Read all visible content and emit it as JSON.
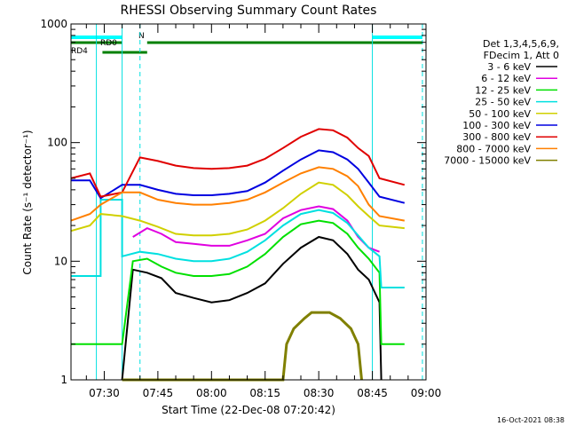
{
  "chart_data": {
    "type": "line",
    "title": "RHESSI Observing Summary Count Rates",
    "xlabel": "Start Time (22-Dec-08 07:20:42)",
    "ylabel": "Count Rate (s⁻¹ detector⁻¹)",
    "x_start": "07:20:42",
    "x_end": "09:00",
    "xlim_minutes": [
      440.7,
      540
    ],
    "ylim": [
      1,
      1000
    ],
    "yscale": "log",
    "x_ticks": [
      "07:30",
      "07:45",
      "08:00",
      "08:15",
      "08:30",
      "08:45",
      "09:00"
    ],
    "x_tick_minutes": [
      450,
      465,
      480,
      495,
      510,
      525,
      540
    ],
    "y_ticks": [
      "1",
      "10",
      "100",
      "1000"
    ],
    "y_tick_values": [
      1,
      10,
      100,
      1000
    ],
    "legend_header": [
      "Det 1,3,4,5,6,9,",
      "FDecim 1, Att 0"
    ],
    "series": [
      {
        "name": "3 - 6 keV",
        "color": "#000000",
        "points": [
          [
            455,
            1.0
          ],
          [
            458,
            8.5
          ],
          [
            462,
            8.0
          ],
          [
            466,
            7.2
          ],
          [
            470,
            5.4
          ],
          [
            475,
            4.9
          ],
          [
            480,
            4.5
          ],
          [
            485,
            4.7
          ],
          [
            490,
            5.4
          ],
          [
            495,
            6.5
          ],
          [
            500,
            9.5
          ],
          [
            505,
            13.0
          ],
          [
            510,
            16.0
          ],
          [
            514,
            15.0
          ],
          [
            518,
            11.5
          ],
          [
            521,
            8.5
          ],
          [
            524,
            7.0
          ],
          [
            527,
            4.5
          ],
          [
            527.5,
            1.0
          ]
        ]
      },
      {
        "name": "6 - 12 keV",
        "color": "#e000e0",
        "points": [
          [
            458,
            16.0
          ],
          [
            462,
            19.0
          ],
          [
            466,
            17.0
          ],
          [
            470,
            14.5
          ],
          [
            475,
            14.0
          ],
          [
            480,
            13.5
          ],
          [
            485,
            13.5
          ],
          [
            490,
            15.0
          ],
          [
            495,
            17.0
          ],
          [
            500,
            23.0
          ],
          [
            505,
            27.0
          ],
          [
            510,
            29.0
          ],
          [
            514,
            27.5
          ],
          [
            518,
            22.0
          ],
          [
            521,
            16.0
          ],
          [
            524,
            13.0
          ],
          [
            527,
            12.0
          ]
        ]
      },
      {
        "name": "12 - 25 keV",
        "color": "#00e000",
        "points": [
          [
            440.7,
            2.0
          ],
          [
            455,
            2.0
          ],
          [
            458,
            10.0
          ],
          [
            462,
            10.5
          ],
          [
            466,
            9.0
          ],
          [
            470,
            8.0
          ],
          [
            475,
            7.5
          ],
          [
            480,
            7.5
          ],
          [
            485,
            7.8
          ],
          [
            490,
            9.0
          ],
          [
            495,
            11.5
          ],
          [
            500,
            16.0
          ],
          [
            505,
            20.5
          ],
          [
            510,
            22.0
          ],
          [
            514,
            21.0
          ],
          [
            518,
            17.0
          ],
          [
            521,
            13.0
          ],
          [
            524,
            10.5
          ],
          [
            527,
            8.0
          ],
          [
            527.5,
            2.0
          ],
          [
            534,
            2.0
          ]
        ]
      },
      {
        "name": "25 - 50 keV",
        "color": "#00e0e0",
        "points": [
          [
            440.7,
            7.5
          ],
          [
            449,
            7.5
          ],
          [
            449,
            33.0
          ],
          [
            455,
            33.0
          ],
          [
            455,
            11.0
          ],
          [
            460,
            12.0
          ],
          [
            465,
            11.5
          ],
          [
            470,
            10.5
          ],
          [
            475,
            10.0
          ],
          [
            480,
            10.0
          ],
          [
            485,
            10.5
          ],
          [
            490,
            12.0
          ],
          [
            495,
            15.0
          ],
          [
            500,
            20.0
          ],
          [
            505,
            25.0
          ],
          [
            510,
            27.0
          ],
          [
            514,
            25.5
          ],
          [
            518,
            21.0
          ],
          [
            521,
            16.5
          ],
          [
            524,
            13.0
          ],
          [
            527,
            11.0
          ],
          [
            527.5,
            6.0
          ],
          [
            534,
            6.0
          ]
        ]
      },
      {
        "name": "50 - 100 keV",
        "color": "#d0d000",
        "points": [
          [
            440.7,
            18.0
          ],
          [
            446,
            20.0
          ],
          [
            449,
            25.0
          ],
          [
            455,
            24.0
          ],
          [
            460,
            22.0
          ],
          [
            465,
            19.5
          ],
          [
            470,
            17.0
          ],
          [
            475,
            16.5
          ],
          [
            480,
            16.5
          ],
          [
            485,
            17.0
          ],
          [
            490,
            18.5
          ],
          [
            495,
            22.0
          ],
          [
            500,
            28.0
          ],
          [
            505,
            37.0
          ],
          [
            510,
            46.0
          ],
          [
            514,
            44.0
          ],
          [
            518,
            36.0
          ],
          [
            521,
            29.0
          ],
          [
            524,
            24.0
          ],
          [
            527,
            20.0
          ],
          [
            534,
            19.0
          ]
        ]
      },
      {
        "name": "100 - 300 keV",
        "color": "#0000e0",
        "points": [
          [
            440.7,
            48.0
          ],
          [
            446,
            48.0
          ],
          [
            449,
            34.0
          ],
          [
            455,
            44.0
          ],
          [
            460,
            44.0
          ],
          [
            465,
            40.0
          ],
          [
            470,
            37.0
          ],
          [
            475,
            36.0
          ],
          [
            480,
            36.0
          ],
          [
            485,
            37.0
          ],
          [
            490,
            39.0
          ],
          [
            495,
            46.0
          ],
          [
            500,
            58.0
          ],
          [
            505,
            72.0
          ],
          [
            510,
            86.0
          ],
          [
            514,
            83.0
          ],
          [
            518,
            72.0
          ],
          [
            521,
            60.0
          ],
          [
            524,
            46.0
          ],
          [
            527,
            35.0
          ],
          [
            534,
            31.0
          ]
        ]
      },
      {
        "name": "300 - 800 keV",
        "color": "#e00000",
        "points": [
          [
            440.7,
            50.0
          ],
          [
            446,
            55.0
          ],
          [
            449,
            35.0
          ],
          [
            455,
            38.0
          ],
          [
            460,
            75.0
          ],
          [
            465,
            70.0
          ],
          [
            470,
            64.0
          ],
          [
            475,
            61.0
          ],
          [
            480,
            60.0
          ],
          [
            485,
            61.0
          ],
          [
            490,
            64.0
          ],
          [
            495,
            73.0
          ],
          [
            500,
            90.0
          ],
          [
            505,
            112.0
          ],
          [
            510,
            130.0
          ],
          [
            514,
            127.0
          ],
          [
            518,
            110.0
          ],
          [
            521,
            90.0
          ],
          [
            524,
            77.0
          ],
          [
            527,
            50.0
          ],
          [
            534,
            44.0
          ]
        ]
      },
      {
        "name": "800 - 7000 keV",
        "color": "#ff8000",
        "points": [
          [
            440.7,
            22.0
          ],
          [
            446,
            25.0
          ],
          [
            449,
            30.0
          ],
          [
            455,
            38.0
          ],
          [
            460,
            38.0
          ],
          [
            465,
            33.0
          ],
          [
            470,
            31.0
          ],
          [
            475,
            30.0
          ],
          [
            480,
            30.0
          ],
          [
            485,
            31.0
          ],
          [
            490,
            33.0
          ],
          [
            495,
            38.0
          ],
          [
            500,
            46.0
          ],
          [
            505,
            55.0
          ],
          [
            510,
            62.0
          ],
          [
            514,
            60.0
          ],
          [
            518,
            52.0
          ],
          [
            521,
            43.0
          ],
          [
            524,
            30.0
          ],
          [
            527,
            24.0
          ],
          [
            534,
            22.0
          ]
        ]
      },
      {
        "name": "7000 - 15000 keV",
        "color": "#808000",
        "points": [
          [
            455,
            1.0
          ],
          [
            500,
            1.0
          ],
          [
            501,
            2.0
          ],
          [
            503,
            2.7
          ],
          [
            506,
            3.3
          ],
          [
            508,
            3.7
          ],
          [
            513,
            3.7
          ],
          [
            516,
            3.3
          ],
          [
            519,
            2.7
          ],
          [
            521,
            2.0
          ],
          [
            522,
            1.0
          ]
        ]
      }
    ],
    "flag_labels": [
      "RD0",
      "RD4",
      "N"
    ],
    "footer_timestamp": "16-Oct-2021 08:38"
  }
}
